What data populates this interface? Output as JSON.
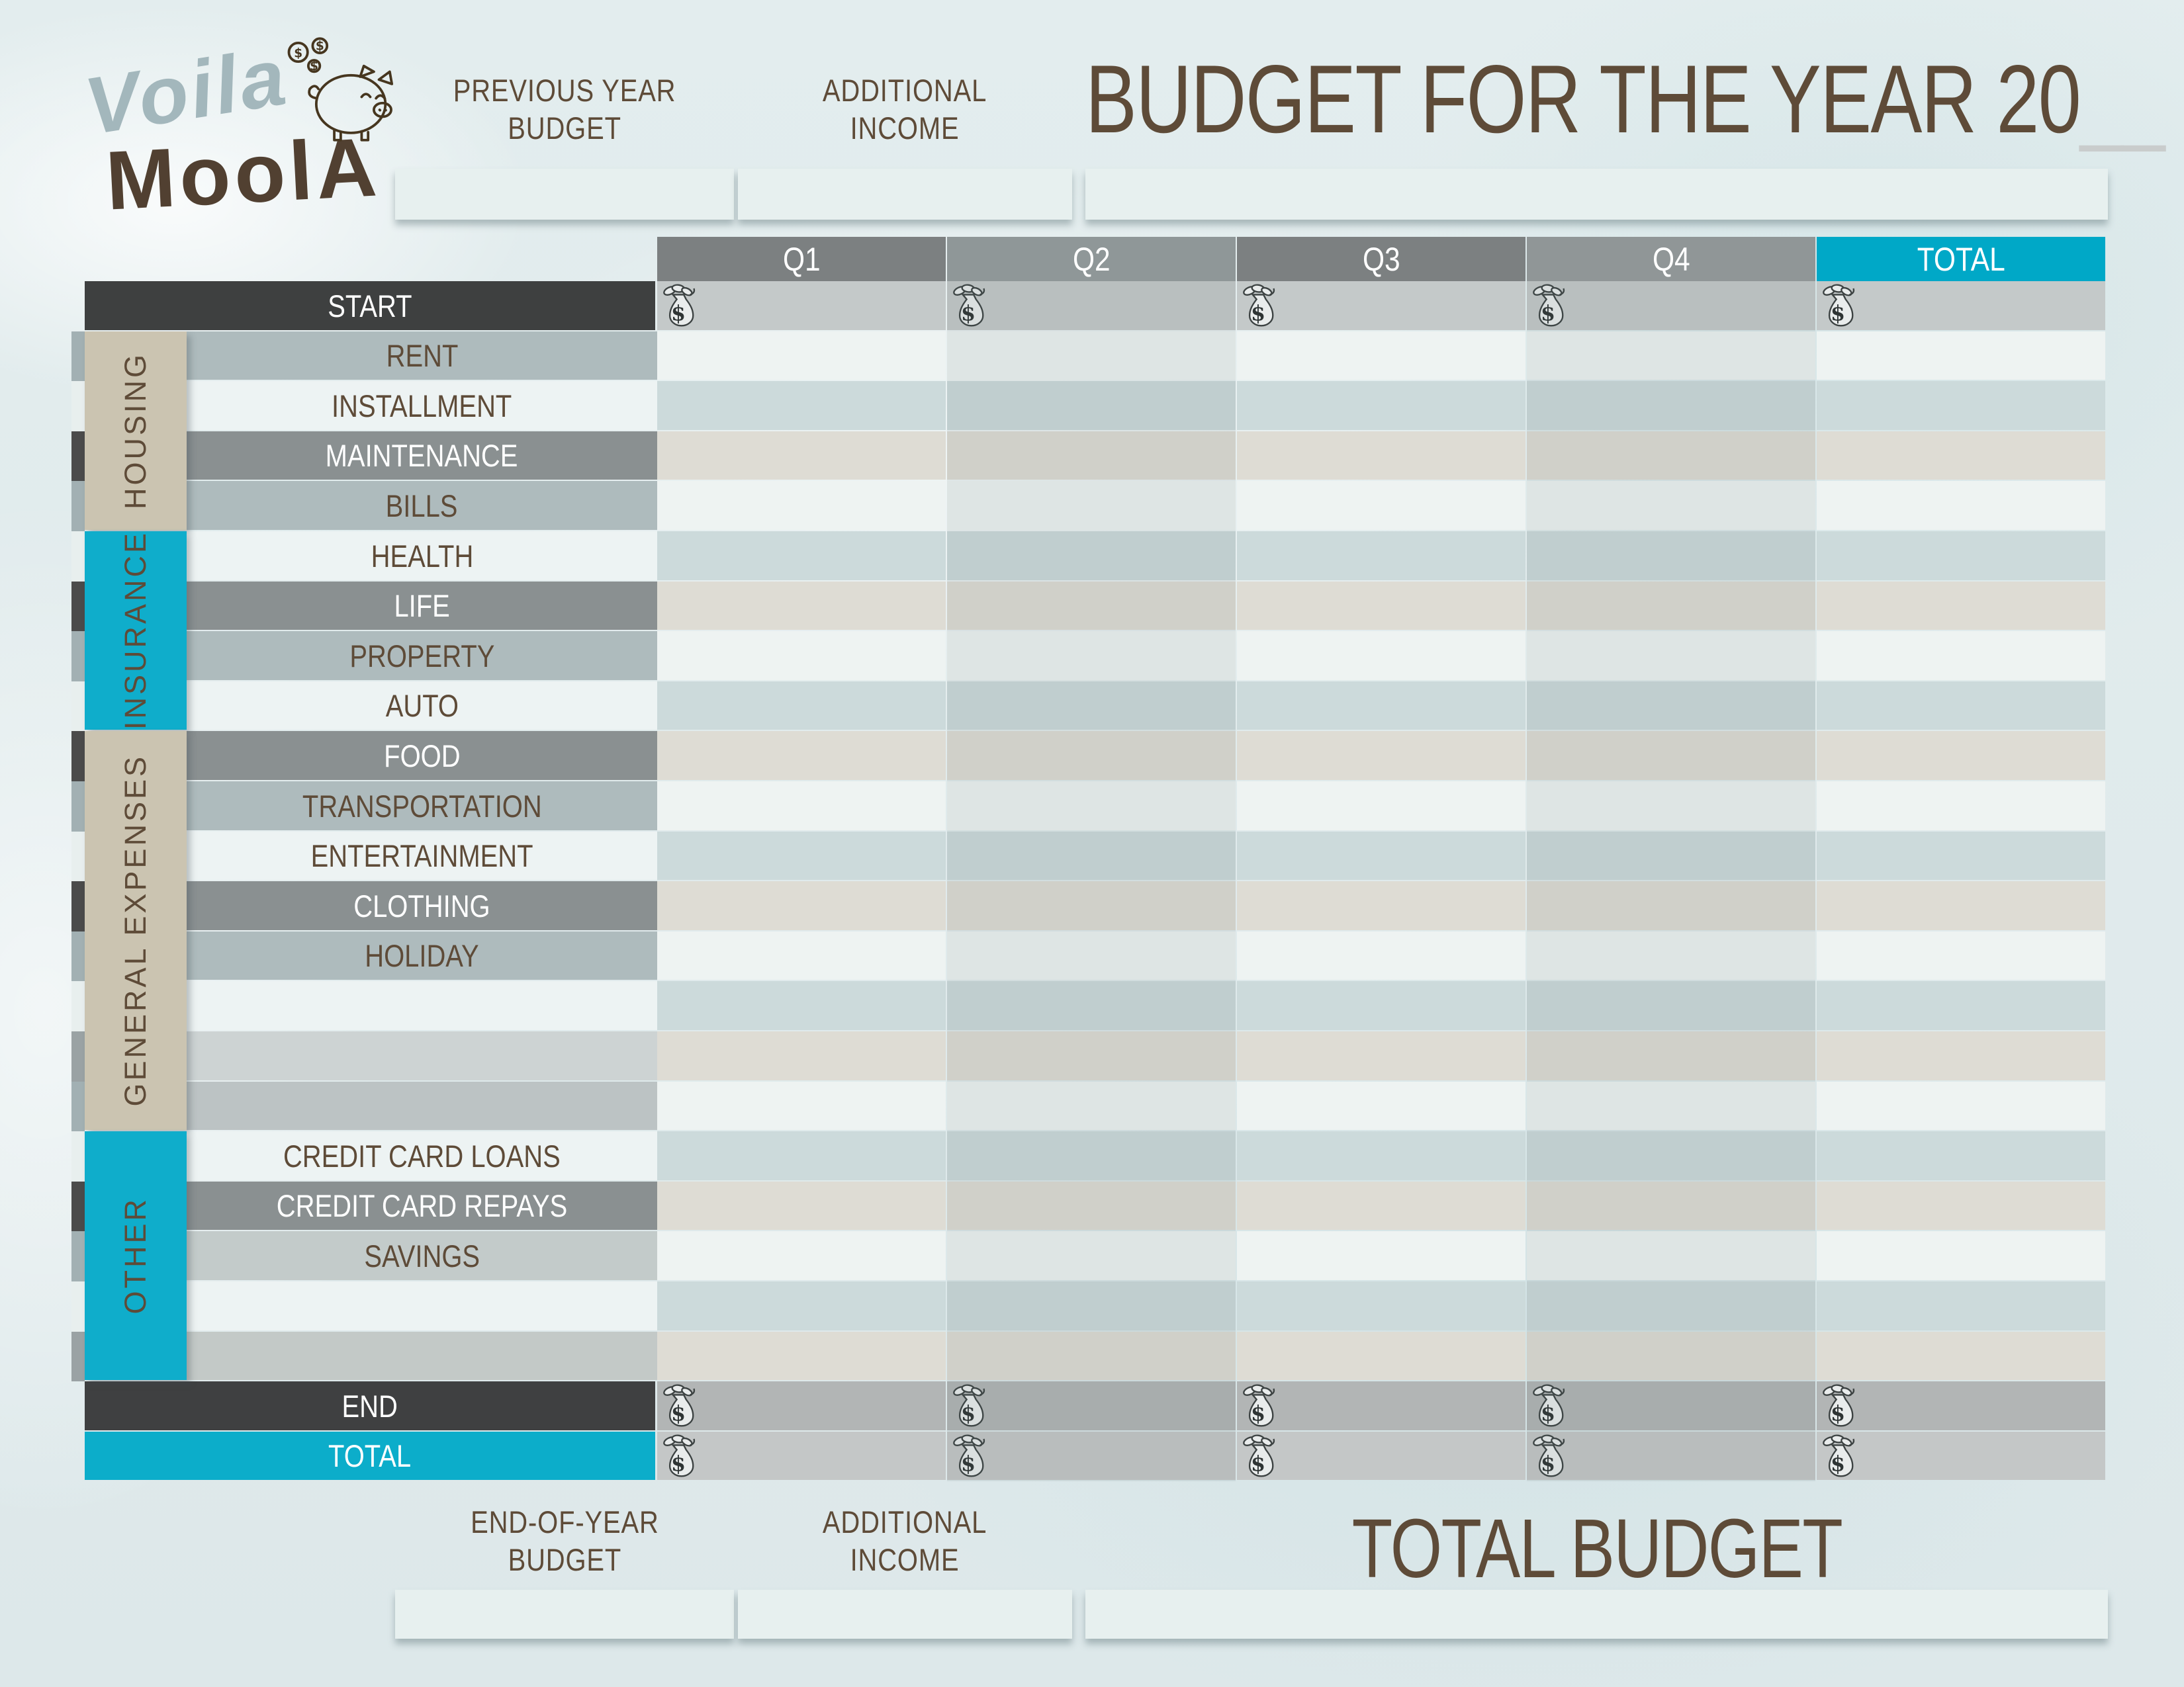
{
  "logo": {
    "voila": "Voila",
    "moola": "MoolA"
  },
  "icons": {
    "piggy_bank": "piggy-bank-icon",
    "dollar_coin": "dollar-coin-icon",
    "money_bag": "money-bag-icon"
  },
  "header": {
    "previous": [
      "PREVIOUS YEAR",
      "BUDGET"
    ],
    "additional": [
      "ADDITIONAL",
      "INCOME"
    ],
    "title": "BUDGET FOR THE YEAR 20",
    "title_blank": "__"
  },
  "footer": {
    "end_of_year": [
      "END-OF-YEAR",
      "BUDGET"
    ],
    "additional": [
      "ADDITIONAL",
      "INCOME"
    ],
    "total_budget": "TOTAL BUDGET"
  },
  "colors": {
    "accent_cyan": "#0cadca",
    "header_total_cyan": "#00a8c7",
    "tan_sidebar": "#cbc4b1",
    "dark_row": "#3e4040",
    "brown_text": "#5e4b38",
    "page_background": "#dfe9ea"
  },
  "table": {
    "columns": [
      {
        "label": "Q1",
        "bg": "#7c8081"
      },
      {
        "label": "Q2",
        "bg": "#8f9798"
      },
      {
        "label": "Q3",
        "bg": "#7c8081"
      },
      {
        "label": "Q4",
        "bg": "#909697"
      },
      {
        "label": "TOTAL",
        "bg": "#00a8c7"
      }
    ],
    "sections": [
      {
        "label": "HOUSING",
        "bg": "#cbc4b1",
        "color": "#5e4b38",
        "from": 1,
        "span": 4
      },
      {
        "label": "INSURANCE",
        "bg": "#0fadcb",
        "color": "#5e4b38",
        "from": 5,
        "span": 4
      },
      {
        "label": "GENERAL EXPENSES",
        "bg": "#cbc4b1",
        "color": "#5e4b38",
        "from": 9,
        "span": 8
      },
      {
        "label": "OTHER",
        "bg": "#0fadcb",
        "color": "#5e4b38",
        "from": 17,
        "span": 5
      }
    ],
    "rows": [
      {
        "label": "START",
        "label_bg": "#3e4040",
        "text_color": "#ffffff",
        "sliver_bg": null,
        "data_bg": "#c4c9c9",
        "bags": true
      },
      {
        "label": "RENT",
        "label_bg": "#aebbbd",
        "text_color": "#5e4b38",
        "sliver_bg": "#a2b0b3",
        "data_bg": "#eef3f2",
        "bags": false
      },
      {
        "label": "INSTALLMENT",
        "label_bg": "#edf3f3",
        "text_color": "#5e4b38",
        "sliver_bg": "#e8efee",
        "data_bg": "#ccdadb",
        "bags": false
      },
      {
        "label": "MAINTENANCE",
        "label_bg": "#8a9091",
        "text_color": "#ffffff",
        "sliver_bg": "#4b4b4b",
        "data_bg": "#dedcd4",
        "bags": false
      },
      {
        "label": "BILLS",
        "label_bg": "#aebbbd",
        "text_color": "#5e4b38",
        "sliver_bg": "#a2b0b3",
        "data_bg": "#eef3f2",
        "bags": false
      },
      {
        "label": "HEALTH",
        "label_bg": "#edf3f3",
        "text_color": "#5e4b38",
        "sliver_bg": "#e8efee",
        "data_bg": "#ccdadb",
        "bags": false
      },
      {
        "label": "LIFE",
        "label_bg": "#8a9091",
        "text_color": "#ffffff",
        "sliver_bg": "#4b4b4b",
        "data_bg": "#dedcd4",
        "bags": false
      },
      {
        "label": "PROPERTY",
        "label_bg": "#aebbbd",
        "text_color": "#5e4b38",
        "sliver_bg": "#a2b0b3",
        "data_bg": "#eef3f2",
        "bags": false
      },
      {
        "label": "AUTO",
        "label_bg": "#edf3f3",
        "text_color": "#5e4b38",
        "sliver_bg": "#e8efee",
        "data_bg": "#ccdadb",
        "bags": false
      },
      {
        "label": "FOOD",
        "label_bg": "#8a9091",
        "text_color": "#ffffff",
        "sliver_bg": "#4b4b4b",
        "data_bg": "#dedcd4",
        "bags": false
      },
      {
        "label": "TRANSPORTATION",
        "label_bg": "#aebbbd",
        "text_color": "#5e4b38",
        "sliver_bg": "#a2b0b3",
        "data_bg": "#eef3f2",
        "bags": false
      },
      {
        "label": "ENTERTAINMENT",
        "label_bg": "#edf3f3",
        "text_color": "#5e4b38",
        "sliver_bg": "#e8efee",
        "data_bg": "#ccdadb",
        "bags": false
      },
      {
        "label": "CLOTHING",
        "label_bg": "#8a9091",
        "text_color": "#ffffff",
        "sliver_bg": "#4b4b4b",
        "data_bg": "#dedcd4",
        "bags": false
      },
      {
        "label": "HOLIDAY",
        "label_bg": "#aebbbd",
        "text_color": "#5e4b38",
        "sliver_bg": "#a2b0b3",
        "data_bg": "#eef3f2",
        "bags": false
      },
      {
        "label": "",
        "label_bg": "#edf3f3",
        "text_color": "#5e4b38",
        "sliver_bg": "#e8efee",
        "data_bg": "#ccdadb",
        "bags": false
      },
      {
        "label": "",
        "label_bg": "#cdd3d3",
        "text_color": "#5e4b38",
        "sliver_bg": "#9aa2a4",
        "data_bg": "#dedcd4",
        "bags": false
      },
      {
        "label": "",
        "label_bg": "#bcc3c4",
        "text_color": "#5e4b38",
        "sliver_bg": "#a2b0b3",
        "data_bg": "#eef3f2",
        "bags": false
      },
      {
        "label": "CREDIT CARD LOANS",
        "label_bg": "#edf3f3",
        "text_color": "#5e4b38",
        "sliver_bg": "#e8efee",
        "data_bg": "#ccdadb",
        "bags": false
      },
      {
        "label": "CREDIT CARD REPAYS",
        "label_bg": "#8a9091",
        "text_color": "#ffffff",
        "sliver_bg": "#4b4b4b",
        "data_bg": "#dedcd4",
        "bags": false
      },
      {
        "label": "SAVINGS",
        "label_bg": "#c3cbca",
        "text_color": "#5e4b38",
        "sliver_bg": "#a2b0b3",
        "data_bg": "#eef3f2",
        "bags": false
      },
      {
        "label": "",
        "label_bg": "#edf3f3",
        "text_color": "#5e4b38",
        "sliver_bg": "#e8efee",
        "data_bg": "#ccdadb",
        "bags": false
      },
      {
        "label": "",
        "label_bg": "#c3c9c7",
        "text_color": "#5e4b38",
        "sliver_bg": "#9aa2a4",
        "data_bg": "#dedcd4",
        "bags": false
      },
      {
        "label": "END",
        "label_bg": "#3f4041",
        "text_color": "#ffffff",
        "sliver_bg": null,
        "data_bg": "#b2b5b5",
        "bags": true
      },
      {
        "label": "TOTAL",
        "label_bg": "#0cadca",
        "text_color": "#ffffff",
        "sliver_bg": null,
        "data_bg": "#c4c7c7",
        "bags": true
      }
    ]
  }
}
